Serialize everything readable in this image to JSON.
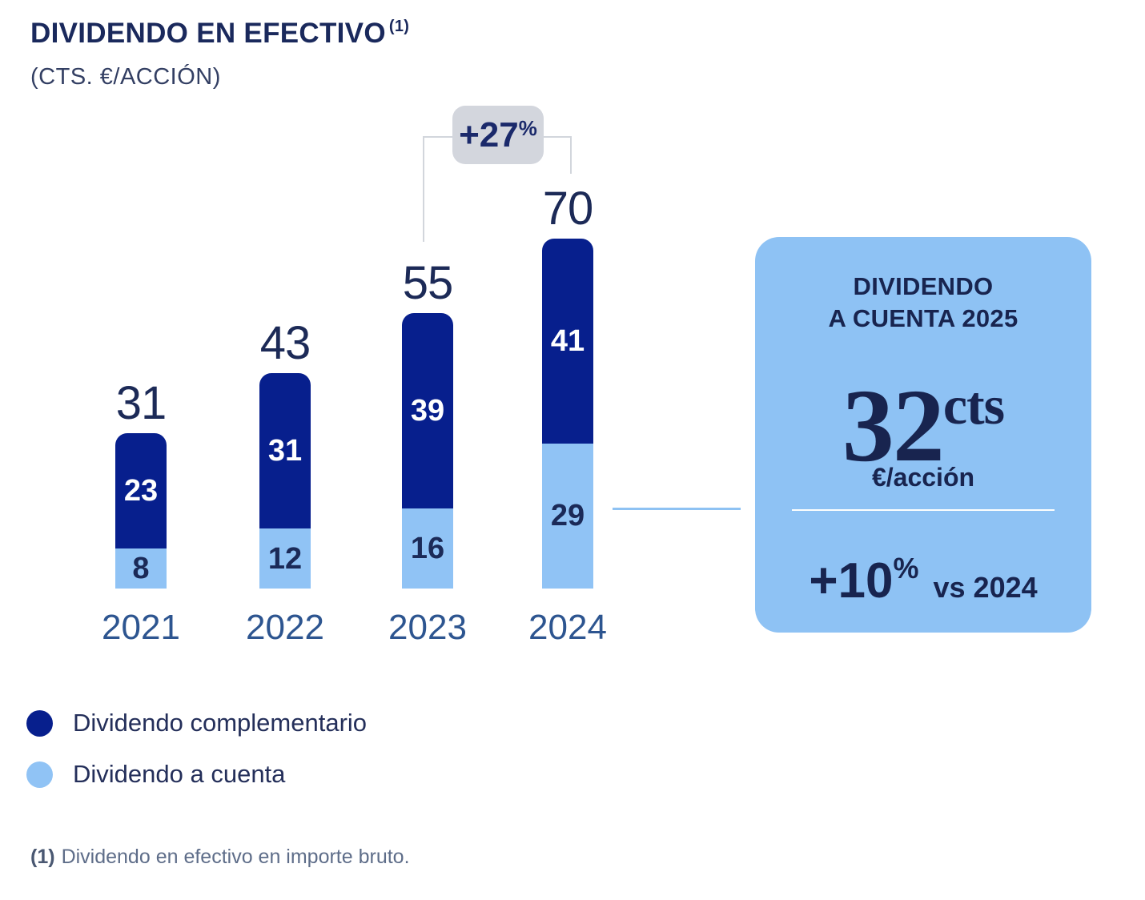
{
  "header": {
    "title": "DIVIDENDO EN EFECTIVO",
    "title_footnote_marker": "(1)",
    "subtitle": "(CTS. €/ACCIÓN)"
  },
  "chart_data": {
    "type": "bar",
    "stacked": true,
    "title": "DIVIDENDO EN EFECTIVO (1)",
    "ylabel": "CTS. €/ACCIÓN",
    "categories": [
      "2021",
      "2022",
      "2023",
      "2024"
    ],
    "series": [
      {
        "name": "Dividendo complementario",
        "color": "#071f8d",
        "value_label_color": "#ffffff",
        "values": [
          23,
          31,
          39,
          41
        ]
      },
      {
        "name": "Dividendo a cuenta",
        "color": "#90c3f5",
        "value_label_color": "#1b2a58",
        "values": [
          8,
          12,
          16,
          29
        ]
      }
    ],
    "totals": [
      31,
      43,
      55,
      70
    ],
    "annotation": {
      "label": "+27",
      "suffix": "%",
      "from": "2023",
      "to": "2024"
    },
    "grid": false,
    "legend_position": "bottom-left",
    "ylim": [
      0,
      70
    ]
  },
  "legend": {
    "items": [
      {
        "label": "Dividendo complementario",
        "color": "#071f8d"
      },
      {
        "label": "Dividendo a cuenta",
        "color": "#90c3f5"
      }
    ]
  },
  "callout": {
    "title_line1": "DIVIDENDO",
    "title_line2": "A CUENTA 2025",
    "value": "32",
    "value_unit": "cts",
    "unit_label": "€/acción",
    "growth_value": "+10",
    "growth_suffix": "%",
    "growth_context": "vs 2024",
    "bg_color": "#8ec2f4"
  },
  "footnote": {
    "marker": "(1)",
    "text": "Dividendo en efectivo en importe bruto."
  }
}
